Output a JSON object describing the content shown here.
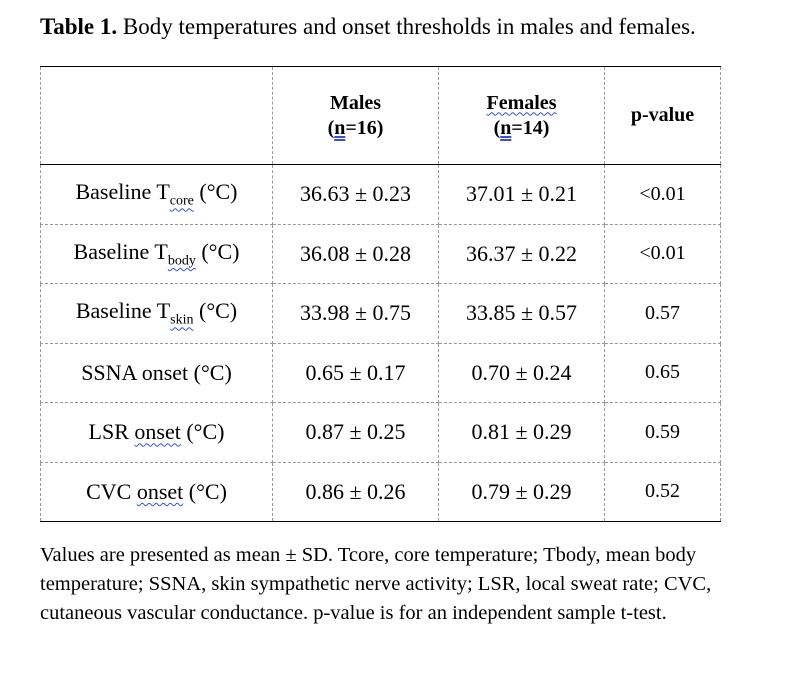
{
  "title": {
    "label": "Table 1.",
    "text": "Body temperatures and onset thresholds in males and females."
  },
  "table": {
    "headers": {
      "males_line1": "Males",
      "males_n_letter": "n",
      "males_n_rest": "=16)",
      "females_line1": "Females",
      "females_n_letter": "n",
      "females_n_rest": "=14)",
      "pvalue": "p-value"
    },
    "rows": [
      {
        "label_pre": "Baseline T",
        "label_sub": "core",
        "label_post": " (°C)",
        "males": "36.63 ± 0.23",
        "females": "37.01 ± 0.21",
        "p": "<0.01"
      },
      {
        "label_pre": "Baseline T",
        "label_sub": "body",
        "label_post": " (°C)",
        "males": "36.08 ± 0.28",
        "females": "36.37 ± 0.22",
        "p": "<0.01"
      },
      {
        "label_pre": "Baseline T",
        "label_sub": "skin",
        "label_post": " (°C)",
        "males": "33.98 ± 0.75",
        "females": "33.85 ± 0.57",
        "p": "0.57"
      },
      {
        "label_pre": "SSNA onset (°C)",
        "label_sub": "",
        "label_post": "",
        "males": "0.65 ± 0.17",
        "females": "0.70 ± 0.24",
        "p": "0.65"
      },
      {
        "label_pre": "LSR ",
        "label_sub": "onset",
        "label_post": " (°C)",
        "males": "0.87 ± 0.25",
        "females": "0.81 ± 0.29",
        "p": "0.59"
      },
      {
        "label_pre": "CVC ",
        "label_sub": "onset",
        "label_post": " (°C)",
        "males": "0.86 ± 0.26",
        "females": "0.79 ± 0.29",
        "p": "0.52"
      }
    ]
  },
  "note": "Values are presented as mean ± SD.  Tcore, core temperature; Tbody, mean body temperature; SSNA, skin sympathetic nerve activity; LSR, local sweat rate; CVC, cutaneous vascular conductance. p-value is for an independent sample t-test."
}
